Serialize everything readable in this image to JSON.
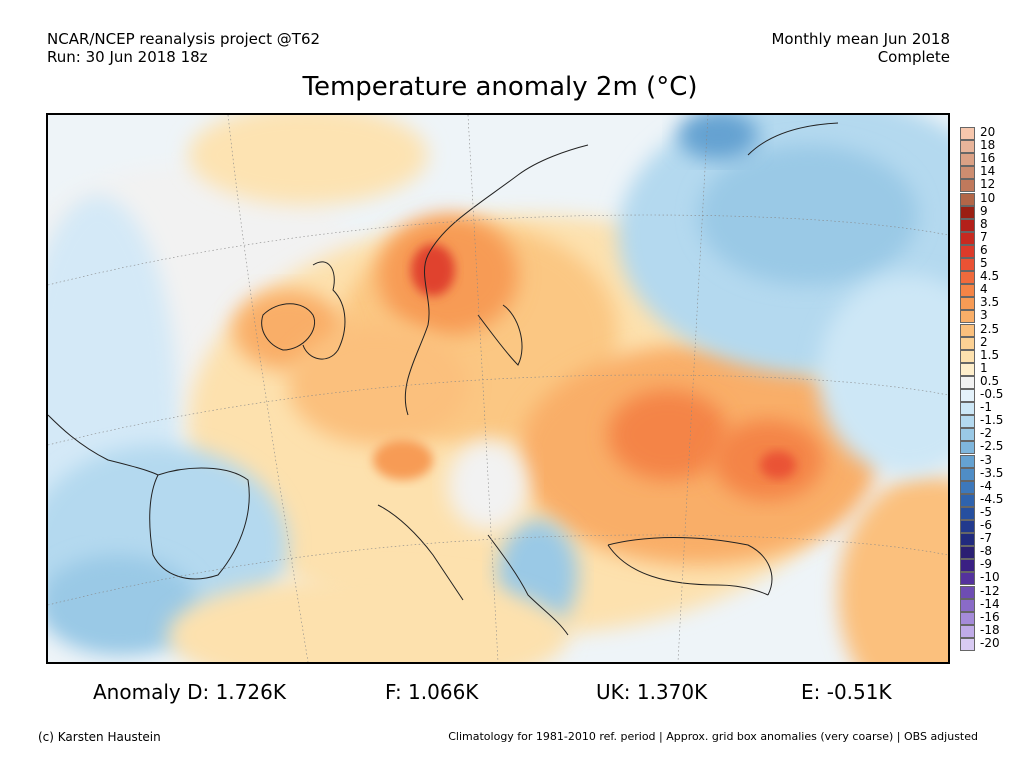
{
  "header": {
    "left_line1": "NCAR/NCEP reanalysis project @T62",
    "left_line2": "Run: 30 Jun 2018 18z",
    "right_line1": "Monthly mean Jun 2018",
    "right_line2": "Complete"
  },
  "title": "Temperature anomaly 2m (°C)",
  "legend": {
    "levels": [
      {
        "label": "20",
        "color": "#f7c7ad"
      },
      {
        "label": "18",
        "color": "#e8b49a"
      },
      {
        "label": "16",
        "color": "#dba185"
      },
      {
        "label": "14",
        "color": "#cd8d70"
      },
      {
        "label": "12",
        "color": "#c0795c"
      },
      {
        "label": "10",
        "color": "#b26648"
      },
      {
        "label": "9",
        "color": "#9b1f13"
      },
      {
        "label": "8",
        "color": "#b3201a"
      },
      {
        "label": "7",
        "color": "#c82a20"
      },
      {
        "label": "6",
        "color": "#dc3a2a"
      },
      {
        "label": "5",
        "color": "#ea5234"
      },
      {
        "label": "4.5",
        "color": "#f06a3c"
      },
      {
        "label": "4",
        "color": "#f48446"
      },
      {
        "label": "3.5",
        "color": "#f79b55"
      },
      {
        "label": "3",
        "color": "#f9ae68"
      },
      {
        "label": "2.5",
        "color": "#fbc07d"
      },
      {
        "label": "2",
        "color": "#fcd194"
      },
      {
        "label": "1.5",
        "color": "#fde1ae"
      },
      {
        "label": "1",
        "color": "#feeecb"
      },
      {
        "label": "0.5",
        "color": "#f2f2f2"
      },
      {
        "label": "-0.5",
        "color": "#e4f2fb"
      },
      {
        "label": "-1",
        "color": "#cde7f6"
      },
      {
        "label": "-1.5",
        "color": "#b4d9ef"
      },
      {
        "label": "-2",
        "color": "#9ac9e6"
      },
      {
        "label": "-2.5",
        "color": "#7fb6dc"
      },
      {
        "label": "-3",
        "color": "#65a2d1"
      },
      {
        "label": "-3.5",
        "color": "#4f8dc6"
      },
      {
        "label": "-4",
        "color": "#3d78bb"
      },
      {
        "label": "-4.5",
        "color": "#2f63ae"
      },
      {
        "label": "-5",
        "color": "#264f9f"
      },
      {
        "label": "-6",
        "color": "#22398d"
      },
      {
        "label": "-7",
        "color": "#212a7e"
      },
      {
        "label": "-8",
        "color": "#2a1f72"
      },
      {
        "label": "-9",
        "color": "#3a2083"
      },
      {
        "label": "-10",
        "color": "#54329d"
      },
      {
        "label": "-12",
        "color": "#6e4db3"
      },
      {
        "label": "-14",
        "color": "#8a6bc7"
      },
      {
        "label": "-16",
        "color": "#a58bd9"
      },
      {
        "label": "-18",
        "color": "#c0abe8"
      },
      {
        "label": "-20",
        "color": "#d9cbf3"
      }
    ]
  },
  "anomalies": {
    "d": "Anomaly D: 1.726K",
    "f": "F: 1.066K",
    "uk": "UK: 1.370K",
    "e": "E: -0.51K"
  },
  "footer": {
    "left": "(c) Karsten Haustein",
    "right": "Climatology for 1981-2010 ref. period | Approx. grid box anomalies (very coarse) | OBS adjusted"
  }
}
